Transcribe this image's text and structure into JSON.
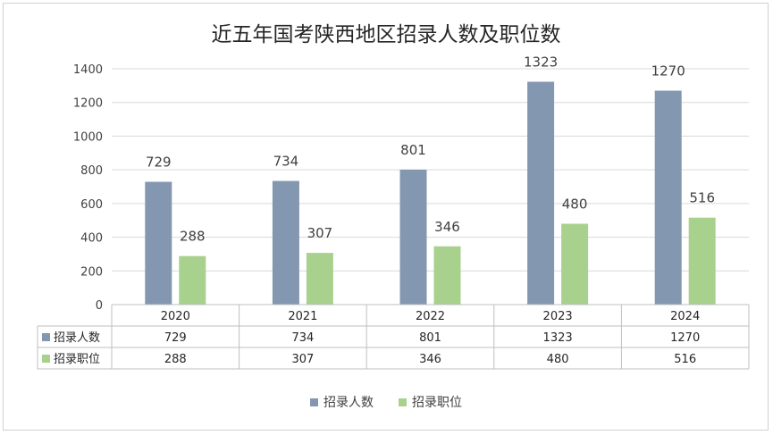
{
  "chart_data": {
    "type": "bar",
    "title": "近五年国考陕西地区招录人数及职位数",
    "categories": [
      "2020",
      "2021",
      "2022",
      "2023",
      "2024"
    ],
    "series": [
      {
        "name": "招录人数",
        "values": [
          729,
          734,
          801,
          1323,
          1270
        ],
        "color": "#8497b0"
      },
      {
        "name": "招录职位",
        "values": [
          288,
          307,
          346,
          480,
          516
        ],
        "color": "#a9d18e"
      }
    ],
    "ylim": [
      0,
      1400
    ],
    "yticks": [
      0,
      200,
      400,
      600,
      800,
      1000,
      1200,
      1400
    ],
    "grid": true,
    "legend": "bottom",
    "data_table": true
  }
}
